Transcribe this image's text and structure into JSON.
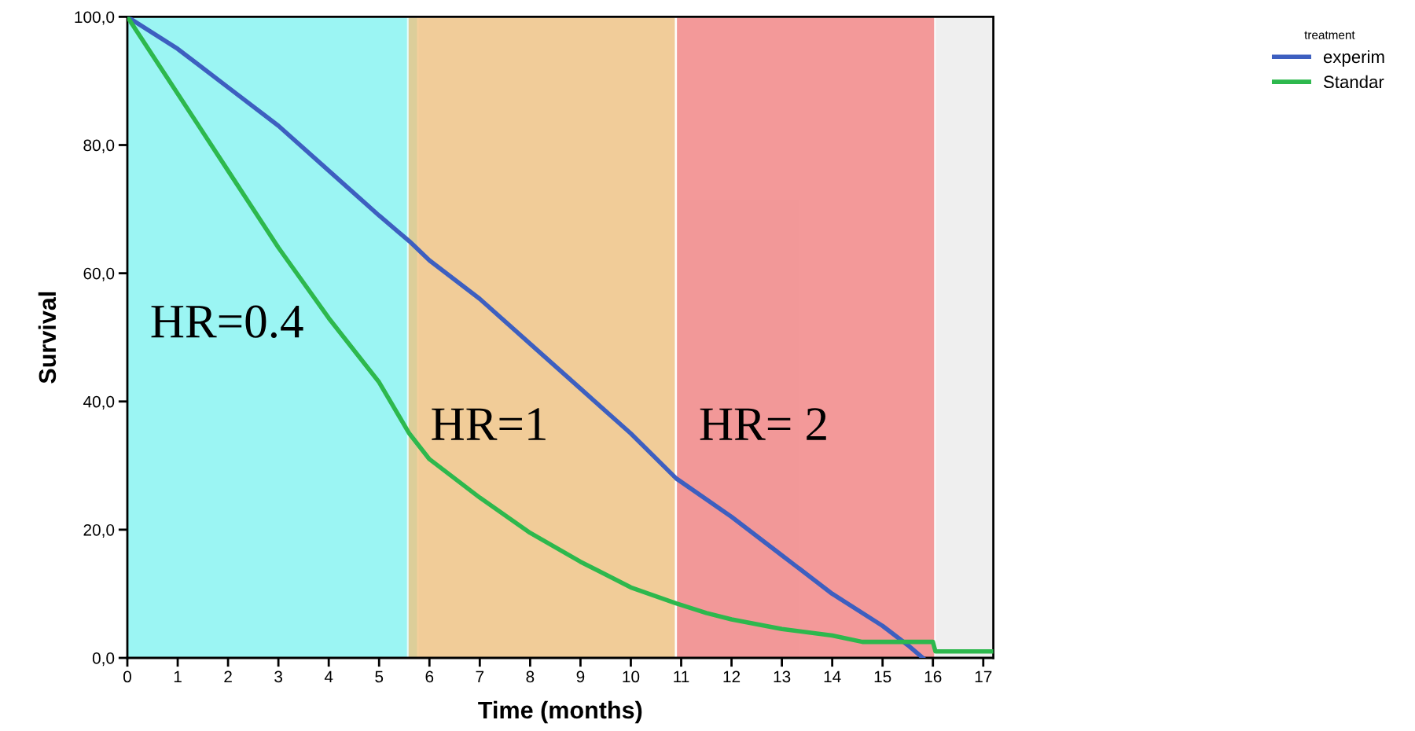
{
  "chart_data": {
    "type": "line",
    "xlabel": "Time (months)",
    "ylabel": "Survival",
    "legend_title": "treatment",
    "legend": "top right",
    "xlim": [
      0,
      17.2
    ],
    "xticks": [
      0,
      1,
      2,
      3,
      4,
      5,
      6,
      7,
      8,
      9,
      10,
      11,
      12,
      13,
      14,
      15,
      16,
      17
    ],
    "ylim": [
      0,
      100
    ],
    "yticks": [
      {
        "value": 0,
        "label": "0,0"
      },
      {
        "value": 20,
        "label": "20,0"
      },
      {
        "value": 40,
        "label": "40,0"
      },
      {
        "value": 60,
        "label": "60,0"
      },
      {
        "value": 80,
        "label": "80,0"
      },
      {
        "value": 100,
        "label": "100,0"
      }
    ],
    "grid": false,
    "series": [
      {
        "name": "experim",
        "color": "#3d5fc0",
        "x": [
          0,
          1,
          2,
          3,
          4,
          5,
          5.6,
          6,
          7,
          8,
          9,
          10,
          10.9,
          12,
          13,
          14,
          15,
          15.5,
          15.8
        ],
        "values": [
          100,
          95,
          89,
          83,
          76,
          69,
          65,
          62,
          56,
          49,
          42,
          35,
          28,
          22,
          16,
          10,
          5,
          2,
          0
        ]
      },
      {
        "name": "Standar",
        "color": "#2db84d",
        "x": [
          0,
          1,
          2,
          3,
          4,
          5,
          5.6,
          6,
          7,
          8,
          9,
          10,
          10.9,
          11.5,
          12,
          13,
          14,
          14.6,
          16,
          16.05,
          17.2
        ],
        "values": [
          100,
          88,
          76,
          64,
          53,
          43,
          35,
          31,
          25,
          19.5,
          15,
          11,
          8.5,
          7,
          6,
          4.5,
          3.5,
          2.5,
          2.5,
          1,
          1
        ]
      }
    ],
    "bands": [
      {
        "axis": "x",
        "from": 0,
        "to": 5.77,
        "label": "HR=0.4",
        "color": "#7ff7f5"
      },
      {
        "axis": "x",
        "from": 5.57,
        "to": 10.89,
        "label": "HR=1",
        "color": "#f2c17c"
      },
      {
        "axis": "x",
        "from": 10.9,
        "to": 16.04,
        "label": "HR= 2",
        "color": "#f47c7c"
      }
    ]
  }
}
